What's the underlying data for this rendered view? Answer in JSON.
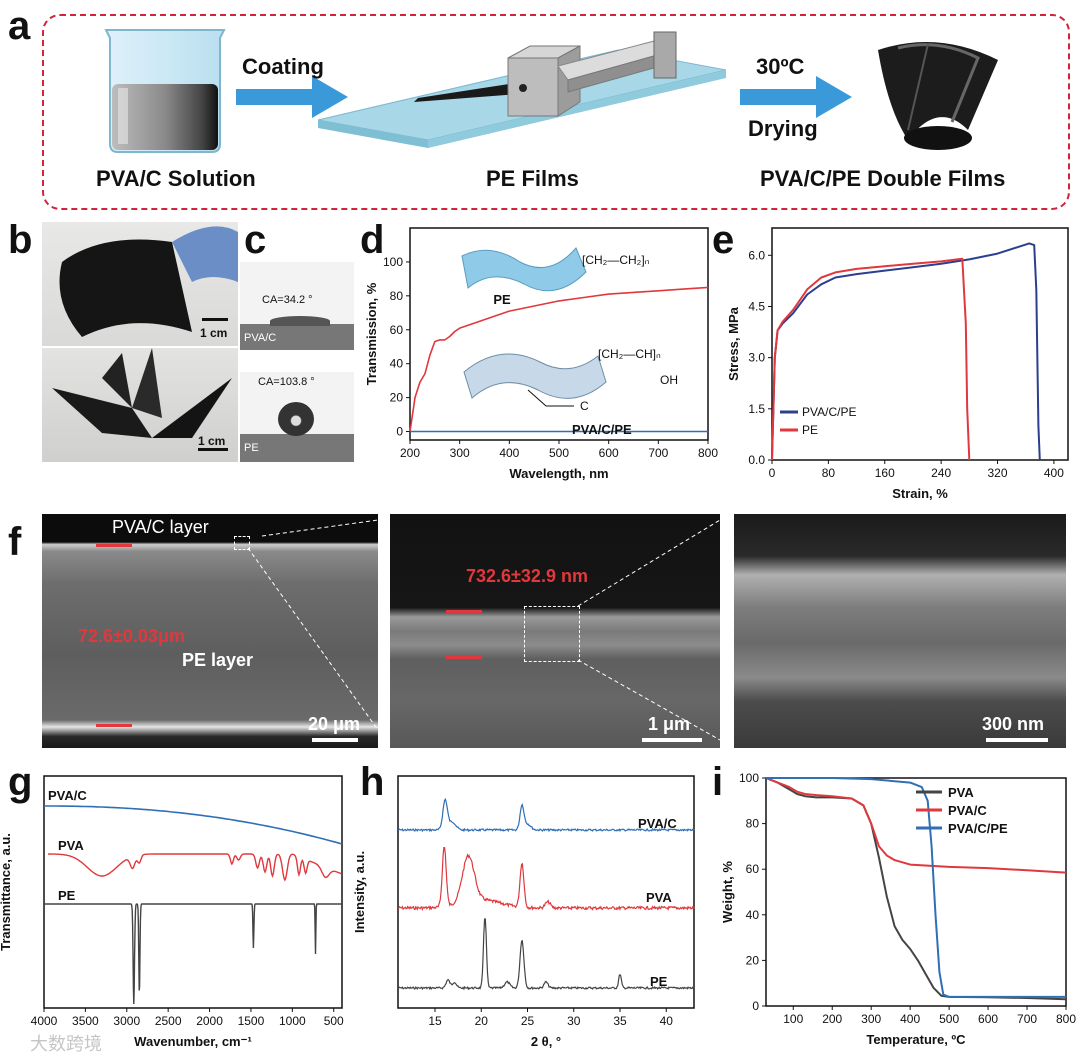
{
  "panels": {
    "a": {
      "label": "a",
      "coating": "Coating",
      "temp": "30ºC",
      "drying": "Drying",
      "cap_solution": "PVA/C Solution",
      "cap_pe": "PE Films",
      "cap_double": "PVA/C/PE Double Films"
    },
    "b": {
      "label": "b",
      "scale1": "1 cm",
      "scale2": "1 cm"
    },
    "c": {
      "label": "c",
      "ca1": "CA=34.2 °",
      "tag1": "PVA/C",
      "ca2": "CA=103.8 °",
      "tag2": "PE"
    },
    "d": {
      "label": "d",
      "pe_label": "PE",
      "pvacpe_label": "PVA/C/PE",
      "c_label": "C",
      "formula_pe": "[CH₂—CH₂]ₙ",
      "formula_pva": "[CH₂—CH]ₙ",
      "oh": "OH"
    },
    "e": {
      "label": "e"
    },
    "f": {
      "label": "f",
      "pvac_layer": "PVA/C layer",
      "pe_layer": "PE layer",
      "thick1": "72.6±0.03μm",
      "thick2": "732.6±32.9 nm",
      "scale1": "20 μm",
      "scale2": "1 μm",
      "scale3": "300 nm"
    },
    "g": {
      "label": "g",
      "s1": "PVA/C",
      "s2": "PVA",
      "s3": "PE"
    },
    "h": {
      "label": "h",
      "s1": "PVA/C",
      "s2": "PVA",
      "s3": "PE"
    },
    "i": {
      "label": "i"
    }
  },
  "watermark": "大数跨境",
  "colors": {
    "red": "#e0383c",
    "blue": "#2f6fb5",
    "navy": "#2b3f8f",
    "gray": "#444444",
    "dash": "#d0243a",
    "arrow": "#3a9ad9",
    "plate": "#a8d8e8"
  },
  "chart_data": [
    {
      "id": "d",
      "type": "line",
      "xlabel": "Wavelength, nm",
      "ylabel": "Transmission, %",
      "xlim": [
        200,
        800
      ],
      "ylim": [
        -5,
        120
      ],
      "xticks": [
        200,
        300,
        400,
        500,
        600,
        700,
        800
      ],
      "yticks": [
        0,
        20,
        40,
        60,
        80,
        100
      ],
      "series": [
        {
          "name": "PE",
          "color": "#e0383c",
          "x": [
            200,
            210,
            220,
            230,
            240,
            250,
            260,
            270,
            280,
            290,
            300,
            350,
            400,
            450,
            500,
            550,
            600,
            650,
            700,
            750,
            800
          ],
          "y": [
            0,
            20,
            29,
            34,
            45,
            53,
            54,
            54,
            56,
            59,
            61,
            66,
            71,
            74,
            77,
            79,
            81,
            82,
            83,
            84,
            85
          ]
        },
        {
          "name": "PVA/C/PE",
          "color": "#2f6fb5",
          "x": [
            200,
            800
          ],
          "y": [
            0,
            0
          ]
        }
      ]
    },
    {
      "id": "e",
      "type": "line",
      "xlabel": "Strain, %",
      "ylabel": "Stress, MPa",
      "xlim": [
        0,
        420
      ],
      "ylim": [
        0,
        6.8
      ],
      "xticks": [
        0,
        80,
        160,
        240,
        320,
        400
      ],
      "yticks": [
        0.0,
        1.5,
        3.0,
        4.5,
        6.0
      ],
      "ytick_labels": [
        "0.0",
        "1.5",
        "3.0",
        "4.5",
        "6.0"
      ],
      "legend": "bottom-right",
      "series": [
        {
          "name": "PVA/C/PE",
          "color": "#2b3f8f",
          "x": [
            0,
            4,
            8,
            15,
            30,
            50,
            70,
            90,
            120,
            160,
            200,
            240,
            280,
            320,
            350,
            365,
            372,
            375,
            378,
            380
          ],
          "y": [
            0,
            3.0,
            3.8,
            4.0,
            4.3,
            4.85,
            5.15,
            5.35,
            5.45,
            5.55,
            5.65,
            5.75,
            5.88,
            6.05,
            6.25,
            6.35,
            6.3,
            5.0,
            1.0,
            0
          ]
        },
        {
          "name": "PE",
          "color": "#e0383c",
          "x": [
            0,
            4,
            8,
            15,
            30,
            50,
            70,
            90,
            120,
            160,
            200,
            240,
            270,
            275,
            277,
            280
          ],
          "y": [
            0,
            3.0,
            3.8,
            4.05,
            4.4,
            5.0,
            5.35,
            5.5,
            5.6,
            5.68,
            5.75,
            5.82,
            5.9,
            4.0,
            1.5,
            0
          ]
        }
      ]
    },
    {
      "id": "g",
      "type": "line",
      "xlabel": "Wavenumber, cm⁻¹",
      "ylabel": "Transmittance, a.u.",
      "xlim": [
        4000,
        400
      ],
      "xticks": [
        4000,
        3500,
        3000,
        2500,
        2000,
        1500,
        1000,
        500
      ],
      "series": [
        {
          "name": "PVA/C",
          "color": "#2f6fb5"
        },
        {
          "name": "PVA",
          "color": "#e0383c"
        },
        {
          "name": "PE",
          "color": "#444444"
        }
      ]
    },
    {
      "id": "h",
      "type": "line",
      "xlabel": "2 θ, °",
      "ylabel": "Intensity, a.u.",
      "xlim": [
        11,
        43
      ],
      "xticks": [
        15,
        20,
        25,
        30,
        35,
        40
      ],
      "series": [
        {
          "name": "PVA/C",
          "color": "#2f6fb5"
        },
        {
          "name": "PVA",
          "color": "#e0383c"
        },
        {
          "name": "PE",
          "color": "#444444"
        }
      ]
    },
    {
      "id": "i",
      "type": "line",
      "xlabel": "Temperature, ºC",
      "ylabel": "Weight, %",
      "xlim": [
        30,
        800
      ],
      "ylim": [
        0,
        100
      ],
      "xticks": [
        100,
        200,
        300,
        400,
        500,
        600,
        700,
        800
      ],
      "yticks": [
        0,
        20,
        40,
        60,
        80,
        100
      ],
      "legend": "top-right",
      "series": [
        {
          "name": "PVA",
          "color": "#444444",
          "x": [
            30,
            60,
            90,
            110,
            130,
            160,
            200,
            250,
            280,
            300,
            320,
            340,
            360,
            380,
            400,
            420,
            440,
            460,
            480,
            500,
            600,
            700,
            800
          ],
          "y": [
            100,
            98,
            95,
            93,
            92,
            91.5,
            91.5,
            91,
            88,
            80,
            65,
            48,
            35,
            29,
            25,
            20,
            14,
            8,
            4.5,
            4,
            3.8,
            3.5,
            3
          ]
        },
        {
          "name": "PVA/C",
          "color": "#e0383c",
          "x": [
            30,
            60,
            90,
            110,
            130,
            160,
            200,
            250,
            280,
            300,
            320,
            340,
            360,
            400,
            450,
            500,
            600,
            700,
            800
          ],
          "y": [
            100,
            98,
            96,
            94,
            93,
            92.5,
            92,
            91,
            88,
            80,
            70,
            66,
            64,
            62,
            61.5,
            61,
            60.5,
            59.5,
            58.5
          ]
        },
        {
          "name": "PVA/C/PE",
          "color": "#2f6fb5",
          "x": [
            30,
            100,
            200,
            300,
            400,
            430,
            445,
            455,
            465,
            475,
            485,
            500,
            600,
            700,
            800
          ],
          "y": [
            100,
            100,
            100,
            99.5,
            98,
            96,
            90,
            70,
            40,
            15,
            5,
            4,
            4,
            4,
            4
          ]
        }
      ]
    }
  ]
}
